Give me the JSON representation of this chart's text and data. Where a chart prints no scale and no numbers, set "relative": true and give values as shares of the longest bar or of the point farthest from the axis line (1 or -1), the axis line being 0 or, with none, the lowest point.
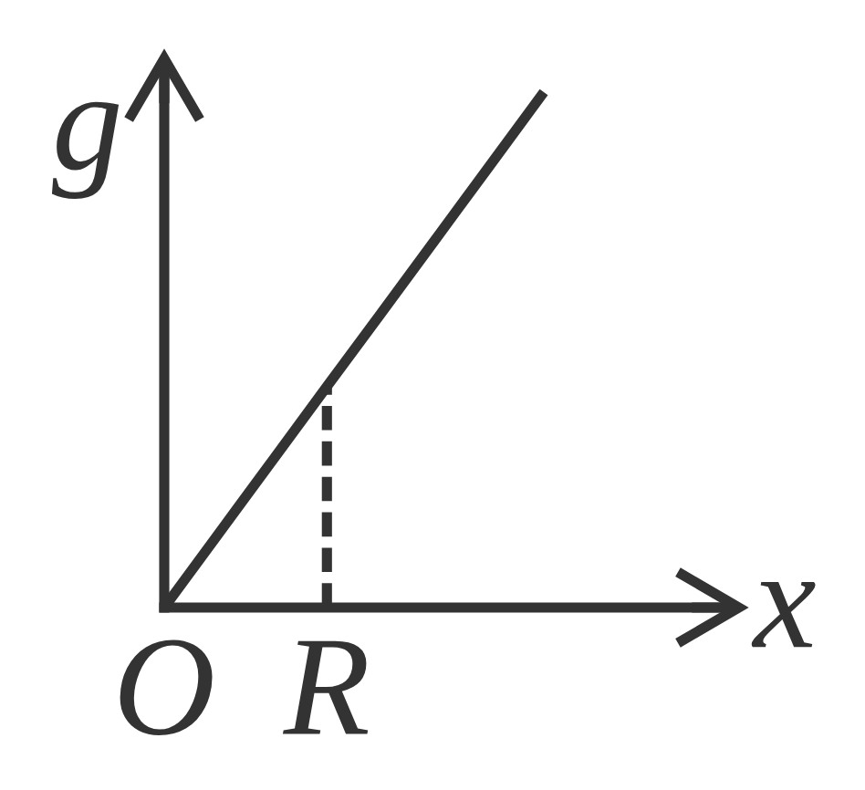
{
  "chart_data": {
    "type": "line",
    "xlabel": "x",
    "ylabel": "g",
    "relative": true,
    "categories": [
      "O",
      null,
      null,
      "R",
      null,
      null,
      null,
      null,
      null,
      null,
      null
    ],
    "series": [
      {
        "color": "#333333",
        "values": [
          0,
          0.143,
          0.286,
          0.429,
          0.571,
          0.714,
          0.857,
          1,
          null,
          null,
          null
        ],
        "line_style": "solid"
      },
      {
        "color": "#333333",
        "x": [
          "R",
          "R"
        ],
        "values": [
          0,
          0.429
        ],
        "line_style": "dashed"
      }
    ]
  }
}
